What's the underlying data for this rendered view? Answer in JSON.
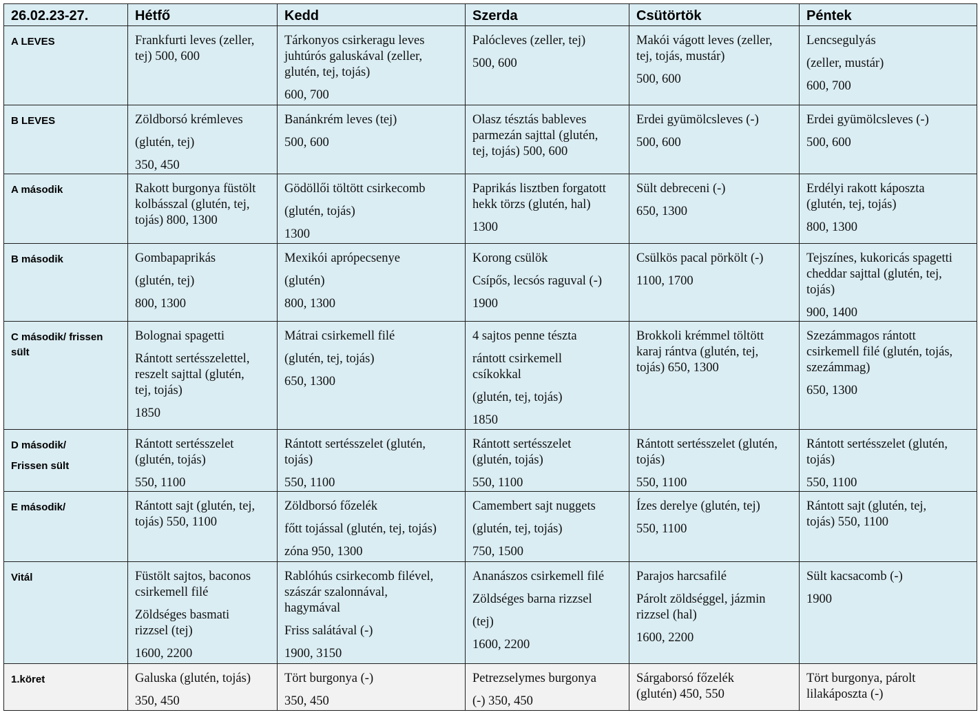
{
  "header": {
    "date_range": "26.02.23-27.",
    "days": [
      "Hétfő",
      "Kedd",
      "Szerda",
      "Csütörtök",
      "Péntek"
    ]
  },
  "rows": [
    {
      "label": [
        "A LEVES"
      ],
      "cells": [
        [
          "Frankfurti leves (zeller,\ntej) 500, 600"
        ],
        [
          "Tárkonyos csirkeragu leves\njuhtúrós galuskával (zeller,\nglutén, tej, tojás)",
          "600, 700"
        ],
        [
          "Palócleves (zeller, tej)",
          "500, 600"
        ],
        [
          "Makói vágott leves (zeller,\ntej, tojás, mustár)",
          "500, 600"
        ],
        [
          "Lencsegulyás",
          "(zeller, mustár)",
          "600, 700"
        ]
      ]
    },
    {
      "label": [
        "B LEVES"
      ],
      "cells": [
        [
          "Zöldborsó krémleves",
          "(glutén, tej)",
          "350, 450"
        ],
        [
          "Banánkrém leves (tej)",
          "500, 600"
        ],
        [
          "Olasz tésztás bableves\nparmezán sajttal (glutén,\ntej, tojás) 500, 600"
        ],
        [
          "Erdei gyümölcsleves (-)",
          "500, 600"
        ],
        [
          "Erdei gyümölcsleves (-)",
          "500, 600"
        ]
      ]
    },
    {
      "label": [
        "A második"
      ],
      "cells": [
        [
          "Rakott burgonya füstölt\nkolbásszal (glutén, tej,\ntojás) 800, 1300"
        ],
        [
          "Gödöllői töltött csirkecomb",
          "(glutén, tojás)",
          "1300"
        ],
        [
          "Paprikás lisztben forgatott\nhekk törzs (glutén, hal)",
          "1300"
        ],
        [
          "Sült debreceni (-)",
          "650, 1300"
        ],
        [
          "Erdélyi rakott káposzta\n(glutén, tej, tojás)",
          "800, 1300"
        ]
      ]
    },
    {
      "label": [
        "B második"
      ],
      "cells": [
        [
          "Gombapaprikás",
          "(glutén, tej)",
          "800, 1300"
        ],
        [
          "Mexikói aprópecsenye",
          "(glutén)",
          "800, 1300"
        ],
        [
          "Korong csülök",
          "Csípős, lecsós raguval (-)",
          "1900"
        ],
        [
          "Csülkös pacal pörkölt (-)",
          "1100, 1700"
        ],
        [
          "Tejszínes, kukoricás spagetti\ncheddar sajttal (glutén, tej,\ntojás)",
          "900, 1400"
        ]
      ]
    },
    {
      "label": [
        "C második/ frissen\nsült"
      ],
      "cells": [
        [
          "Bolognai spagetti",
          "Rántott sertésszelettel,\nreszelt sajttal (glutén,\ntej, tojás)",
          "1850"
        ],
        [
          "Mátrai csirkemell filé",
          "(glutén, tej, tojás)",
          "650, 1300"
        ],
        [
          "4 sajtos penne tészta",
          "rántott csirkemell\ncsíkokkal",
          "(glutén, tej, tojás)",
          "1850"
        ],
        [
          "Brokkoli krémmel töltött\nkaraj rántva (glutén, tej,\ntojás) 650, 1300"
        ],
        [
          "Szezámmagos rántott\ncsirkemell filé (glutén, tojás,\nszezámmag)",
          "650, 1300"
        ]
      ]
    },
    {
      "label": [
        "D második/",
        "Frissen sült"
      ],
      "cells": [
        [
          "Rántott sertésszelet\n(glutén, tojás)",
          "550, 1100"
        ],
        [
          "Rántott sertésszelet (glutén,\ntojás)",
          "550, 1100"
        ],
        [
          "Rántott sertésszelet\n(glutén, tojás)",
          "550, 1100"
        ],
        [
          "Rántott sertésszelet (glutén,\ntojás)",
          "550, 1100"
        ],
        [
          "Rántott sertésszelet (glutén,\ntojás)",
          "550, 1100"
        ]
      ]
    },
    {
      "label": [
        "E második/"
      ],
      "cells": [
        [
          "Rántott sajt (glutén, tej,\ntojás) 550, 1100"
        ],
        [
          "Zöldborsó főzelék",
          "főtt tojással (glutén, tej, tojás)",
          "zóna 950, 1300"
        ],
        [
          "Camembert sajt nuggets",
          "(glutén, tej, tojás)",
          "750, 1500"
        ],
        [
          "Ízes derelye (glutén, tej)",
          "550, 1100"
        ],
        [
          "Rántott sajt (glutén, tej,\ntojás) 550, 1100"
        ]
      ]
    },
    {
      "label": [
        "Vitál"
      ],
      "cells": [
        [
          "Füstölt sajtos, baconos\ncsirkemell filé",
          "Zöldséges basmati\nrizzsel (tej)",
          "1600, 2200"
        ],
        [
          "Rablóhús csirkecomb filével,\nszászár szalonnával,\nhagymával",
          "Friss salátával (-)",
          "1900, 3150"
        ],
        [
          "Ananászos csirkemell filé",
          "Zöldséges barna rizzsel",
          "(tej)",
          "1600, 2200"
        ],
        [
          "Parajos harcsafilé",
          "Párolt zöldséggel, jázmin\nrizzsel (hal)",
          "1600, 2200"
        ],
        [
          "Sült kacsacomb (-)",
          "1900"
        ]
      ]
    },
    {
      "label": [
        "1.köret"
      ],
      "cells": [
        [
          "Galuska (glutén, tojás)",
          "350, 450"
        ],
        [
          "Tört burgonya (-)",
          "350, 450"
        ],
        [
          "Petrezselymes burgonya",
          "(-) 350, 450"
        ],
        [
          "Sárgaborsó főzelék\n(glutén) 450, 550"
        ],
        [
          "Tört burgonya, párolt\nlilakáposzta (-)"
        ]
      ]
    }
  ]
}
